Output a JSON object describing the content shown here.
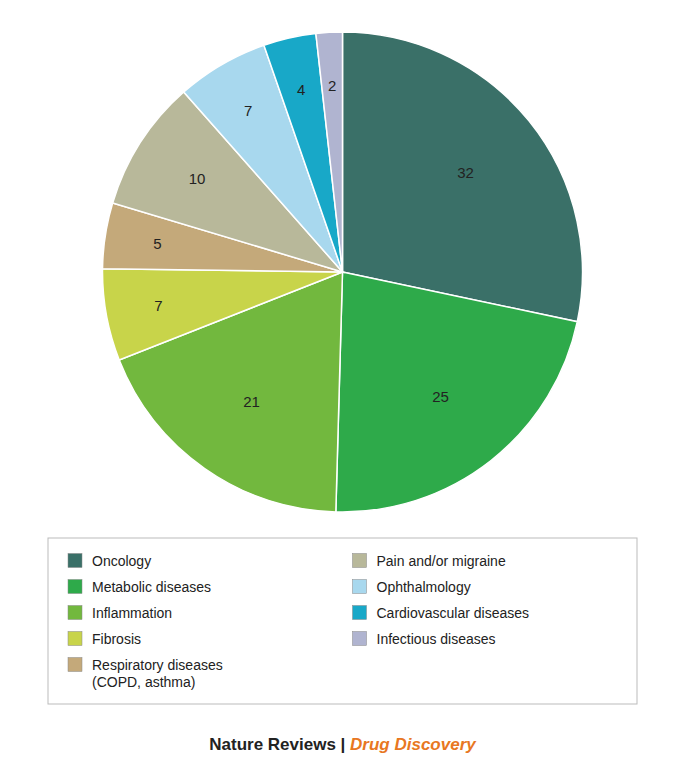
{
  "chart_data": {
    "type": "pie",
    "categories": [
      "Oncology",
      "Metabolic diseases",
      "Inflammation",
      "Fibrosis",
      "Respiratory diseases\n(COPD, asthma)",
      "Pain and/or migraine",
      "Ophthalmology",
      "Cardiovascular diseases",
      "Infectious diseases"
    ],
    "values": [
      32,
      25,
      21,
      7,
      5,
      10,
      7,
      4,
      2
    ],
    "colors": [
      "#3a7068",
      "#2eaa4a",
      "#72b83e",
      "#c8d44a",
      "#c4a97a",
      "#b8b89a",
      "#a8d8ee",
      "#18a8c8",
      "#b0b4d0"
    ],
    "data_labels": true,
    "legend": "bottom",
    "annotations": [
      {
        "text": "Nature Reviews | ",
        "color": "#222222"
      },
      {
        "text": "Drug Discovery",
        "color": "#e87722"
      }
    ]
  }
}
